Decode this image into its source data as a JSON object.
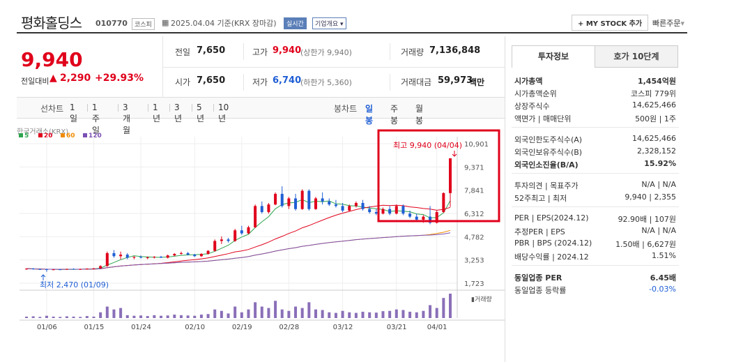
{
  "header": {
    "title": "평화홀딩스",
    "code": "010770",
    "market": "코스피",
    "date_text": "2025.04.04 기준(KRX 장마감)",
    "realtime": "실시간",
    "company_overview": "기업개요",
    "mystock_button": "+ MY STOCK 추가",
    "quick_order": "빠른주문"
  },
  "summary": {
    "price": "9,940",
    "change_label": "전일대비",
    "change": "2,290",
    "change_pct": "+29.93%",
    "prev_label": "전일",
    "prev": "7,650",
    "open_label": "시가",
    "open": "7,650",
    "high_label": "고가",
    "high": "9,940",
    "upper_limit": "(상한가 9,940)",
    "low_label": "저가",
    "low": "6,740",
    "lower_limit": "(하한가 5,360)",
    "volume_label": "거래량",
    "volume": "7,136,848",
    "amount_label": "거래대금",
    "amount": "59,973",
    "amount_unit": "백만"
  },
  "period_tabs": {
    "line_chart": "선차트",
    "items": [
      "1일",
      "1주일",
      "3개월",
      "1년",
      "3년",
      "5년",
      "10년"
    ],
    "candle_chart": "봉차트",
    "candle_items": [
      "일봉",
      "주봉",
      "월봉"
    ],
    "selected_candle": "일봉"
  },
  "chart_data": {
    "type": "candlestick",
    "source_label": "한국거래소(KRX)",
    "legend": [
      {
        "name": "5",
        "color": "#2ea44f"
      },
      {
        "name": "20",
        "color": "#e0001b"
      },
      {
        "name": "60",
        "color": "#f08c00"
      },
      {
        "name": "120",
        "color": "#7b4fb3"
      }
    ],
    "y_ticks": [
      "10,901",
      "9,371",
      "7,841",
      "6,312",
      "4,782",
      "3,253",
      "1,723"
    ],
    "ylim": [
      1723,
      10901
    ],
    "x_ticks": [
      "01/06",
      "01/15",
      "01/24",
      "02/10",
      "02/19",
      "02/28",
      "03/12",
      "03/21",
      "04/01"
    ],
    "high_annotation": "최고 9,940 (04/04)",
    "low_annotation": "최저 2,470 (01/09)",
    "volume_label": "거래량",
    "candles": [
      [
        2650,
        2700,
        2600,
        2680
      ],
      [
        2680,
        2720,
        2620,
        2650
      ],
      [
        2650,
        2690,
        2600,
        2640
      ],
      [
        2640,
        2670,
        2470,
        2600
      ],
      [
        2600,
        2650,
        2580,
        2630
      ],
      [
        2630,
        2660,
        2600,
        2620
      ],
      [
        2620,
        2680,
        2600,
        2660
      ],
      [
        2660,
        2700,
        2620,
        2640
      ],
      [
        2640,
        2680,
        2610,
        2650
      ],
      [
        2650,
        2700,
        2620,
        2680
      ],
      [
        2680,
        2720,
        2650,
        2700
      ],
      [
        2700,
        2900,
        2680,
        2850
      ],
      [
        2850,
        3800,
        2800,
        3700
      ],
      [
        3700,
        3900,
        3400,
        3500
      ],
      [
        3500,
        3800,
        3300,
        3600
      ],
      [
        3600,
        3700,
        3300,
        3400
      ],
      [
        3400,
        3500,
        3300,
        3450
      ],
      [
        3450,
        3550,
        3350,
        3400
      ],
      [
        3400,
        3480,
        3300,
        3420
      ],
      [
        3420,
        3500,
        3350,
        3460
      ],
      [
        3460,
        3520,
        3380,
        3400
      ],
      [
        3400,
        3600,
        3350,
        3550
      ],
      [
        3550,
        3700,
        3500,
        3650
      ],
      [
        3650,
        3800,
        3600,
        3700
      ],
      [
        3700,
        3780,
        3550,
        3600
      ],
      [
        3600,
        3650,
        3450,
        3500
      ],
      [
        3500,
        3700,
        3450,
        3650
      ],
      [
        3650,
        3900,
        3600,
        3850
      ],
      [
        3850,
        4600,
        3800,
        4500
      ],
      [
        4500,
        4800,
        4300,
        4600
      ],
      [
        4600,
        4700,
        4400,
        4500
      ],
      [
        4500,
        5300,
        4450,
        5200
      ],
      [
        5200,
        5500,
        4900,
        5000
      ],
      [
        5000,
        5500,
        4950,
        5400
      ],
      [
        5400,
        6900,
        5350,
        6800
      ],
      [
        6800,
        7100,
        6300,
        6400
      ],
      [
        6400,
        7000,
        6300,
        6900
      ],
      [
        6900,
        7700,
        6850,
        7600
      ],
      [
        7600,
        8100,
        6700,
        6800
      ],
      [
        6800,
        7400,
        6600,
        7300
      ],
      [
        7300,
        7600,
        6500,
        6600
      ],
      [
        6600,
        7900,
        6550,
        7800
      ],
      [
        7800,
        7900,
        6500,
        6600
      ],
      [
        6600,
        7400,
        6550,
        7300
      ],
      [
        7300,
        7700,
        6900,
        7100
      ],
      [
        7100,
        7300,
        6800,
        6900
      ],
      [
        6900,
        7200,
        6700,
        6800
      ],
      [
        6800,
        7000,
        6400,
        6500
      ],
      [
        6500,
        6900,
        6450,
        6800
      ],
      [
        6800,
        7100,
        6700,
        7000
      ],
      [
        7000,
        7200,
        6500,
        6600
      ],
      [
        6600,
        6800,
        6300,
        6400
      ],
      [
        6400,
        6600,
        6200,
        6300
      ],
      [
        6300,
        6700,
        6250,
        6600
      ],
      [
        6600,
        6800,
        6200,
        6300
      ],
      [
        6300,
        6900,
        6250,
        6800
      ],
      [
        6800,
        6900,
        6200,
        6300
      ],
      [
        6300,
        6500,
        6000,
        6100
      ],
      [
        6100,
        6300,
        5800,
        5900
      ],
      [
        5900,
        6200,
        5700,
        6100
      ],
      [
        6100,
        6800,
        5600,
        5700
      ],
      [
        5700,
        6500,
        5650,
        6400
      ],
      [
        6400,
        7700,
        6350,
        7650
      ],
      [
        7650,
        9940,
        6740,
        9940
      ]
    ],
    "volume": [
      5,
      6,
      4,
      8,
      5,
      4,
      6,
      5,
      4,
      7,
      5,
      20,
      40,
      30,
      35,
      10,
      8,
      9,
      7,
      10,
      8,
      9,
      12,
      10,
      9,
      8,
      12,
      14,
      30,
      25,
      16,
      40,
      20,
      30,
      55,
      40,
      35,
      60,
      30,
      25,
      40,
      35,
      55,
      30,
      28,
      20,
      18,
      25,
      20,
      18,
      22,
      20,
      19,
      24,
      25,
      30,
      28,
      22,
      20,
      25,
      45,
      35,
      70,
      85
    ]
  },
  "side": {
    "tabs": [
      "투자정보",
      "호가 10단계"
    ],
    "groups": [
      [
        {
          "k": "시가총액",
          "v": "1,454억원",
          "bold": true
        },
        {
          "k": "시가총액순위",
          "v": "코스피 779위"
        },
        {
          "k": "상장주식수",
          "v": "14,625,466"
        },
        {
          "k": "액면가 | 매매단위",
          "v": "500원 | 1주"
        }
      ],
      [
        {
          "k": "외국인한도주식수(A)",
          "v": "14,625,466"
        },
        {
          "k": "외국인보유주식수(B)",
          "v": "2,328,152"
        },
        {
          "k": "외국인소진율(B/A)",
          "v": "15.92%",
          "bold": true
        }
      ],
      [
        {
          "k": "투자의견 | 목표주가",
          "v": "N/A | N/A"
        },
        {
          "k": "52주최고 | 최저",
          "v": "9,940 | 2,355"
        }
      ],
      [
        {
          "k": "PER | EPS(2024.12)",
          "v": "92.90배 | 107원"
        },
        {
          "k": "추정PER | EPS",
          "v": "N/A | N/A"
        },
        {
          "k": "PBR | BPS (2024.12)",
          "v": "1.50배 | 6,627원"
        },
        {
          "k": "배당수익률 | 2024.12",
          "v": "1.51%"
        }
      ],
      [
        {
          "k": "동일업종 PER",
          "v": "6.45배",
          "bold": true
        },
        {
          "k": "동일업종 등락률",
          "v": "-0.03%",
          "blue": true
        }
      ]
    ]
  }
}
